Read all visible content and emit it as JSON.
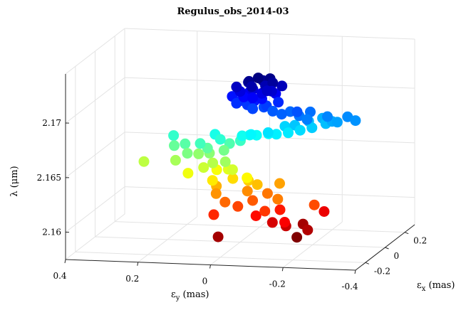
{
  "chart_data": {
    "type": "scatter",
    "projection": "3d",
    "title": "Regulus_obs_2014-03",
    "xlabel": "ε_y (mas)",
    "ylabel": "ε_x (mas)",
    "zlabel": "λ (μm)",
    "label_parts": {
      "x": {
        "base": "ε",
        "sub": "y",
        "tail": " (mas)"
      },
      "y": {
        "base": "ε",
        "sub": "x",
        "tail": " (mas)"
      },
      "z": "λ (μm)"
    },
    "x_ticks": [
      "0.4",
      "0.2",
      "0",
      "-0.2",
      "-0.4"
    ],
    "y_ticks": [
      "-0.2",
      "0",
      "0.2"
    ],
    "z_ticks": [
      "2.16",
      "2.165",
      "2.17"
    ],
    "xlim": [
      0.4,
      -0.4
    ],
    "ylim": [
      -0.3,
      0.3
    ],
    "zlim": [
      2.1575,
      2.1745
    ],
    "grid": true,
    "colormap": "jet",
    "marker": "filled-circle",
    "points": [
      {
        "x": -0.17,
        "y": -0.05,
        "z": 2.1585
      },
      {
        "x": -0.16,
        "y": 0.05,
        "z": 2.159
      },
      {
        "x": 0.02,
        "y": -0.15,
        "z": 2.159
      },
      {
        "x": -0.2,
        "y": -0.05,
        "z": 2.1592
      },
      {
        "x": -0.14,
        "y": -0.05,
        "z": 2.1595
      },
      {
        "x": -0.1,
        "y": -0.04,
        "z": 2.1597
      },
      {
        "x": -0.21,
        "y": 0.08,
        "z": 2.16
      },
      {
        "x": -0.15,
        "y": -0.1,
        "z": 2.1602
      },
      {
        "x": -0.06,
        "y": -0.06,
        "z": 2.1604
      },
      {
        "x": -0.11,
        "y": 0.0,
        "z": 2.1606
      },
      {
        "x": 0.04,
        "y": -0.12,
        "z": 2.1608
      },
      {
        "x": -0.09,
        "y": -0.08,
        "z": 2.161
      },
      {
        "x": -0.01,
        "y": -0.06,
        "z": 2.1612
      },
      {
        "x": -0.21,
        "y": -0.02,
        "z": 2.1613
      },
      {
        "x": -0.04,
        "y": -0.02,
        "z": 2.1615
      },
      {
        "x": 0.02,
        "y": -0.08,
        "z": 2.1617
      },
      {
        "x": -0.07,
        "y": 0.02,
        "z": 2.1619
      },
      {
        "x": -0.12,
        "y": -0.06,
        "z": 2.162
      },
      {
        "x": -0.02,
        "y": 0.0,
        "z": 2.1622
      },
      {
        "x": 0.05,
        "y": -0.06,
        "z": 2.1623
      },
      {
        "x": -0.09,
        "y": 0.07,
        "z": 2.1625
      },
      {
        "x": 0.06,
        "y": -0.02,
        "z": 2.1627
      },
      {
        "x": -0.05,
        "y": -0.01,
        "z": 2.1629
      },
      {
        "x": -0.02,
        "y": 0.01,
        "z": 2.1631
      },
      {
        "x": 0.02,
        "y": 0.0,
        "z": 2.1633
      },
      {
        "x": 0.06,
        "y": -0.06,
        "z": 2.1635
      },
      {
        "x": -0.03,
        "y": -0.04,
        "z": 2.1637
      },
      {
        "x": 0.07,
        "y": 0.02,
        "z": 2.1639
      },
      {
        "x": 0.13,
        "y": -0.05,
        "z": 2.164
      },
      {
        "x": 0.03,
        "y": -0.01,
        "z": 2.1642
      },
      {
        "x": 0.01,
        "y": -0.04,
        "z": 2.1644
      },
      {
        "x": 0.09,
        "y": -0.04,
        "z": 2.1645
      },
      {
        "x": 0.26,
        "y": -0.02,
        "z": 2.1647
      },
      {
        "x": 0.07,
        "y": -0.02,
        "z": 2.1648
      },
      {
        "x": 0.17,
        "y": -0.03,
        "z": 2.165
      },
      {
        "x": 0.03,
        "y": -0.04,
        "z": 2.1651
      },
      {
        "x": 0.12,
        "y": 0.02,
        "z": 2.1653
      },
      {
        "x": 0.09,
        "y": 0.02,
        "z": 2.1654
      },
      {
        "x": 0.14,
        "y": -0.02,
        "z": 2.1656
      },
      {
        "x": 0.05,
        "y": 0.02,
        "z": 2.1657
      },
      {
        "x": 0.19,
        "y": 0.03,
        "z": 2.1659
      },
      {
        "x": 0.09,
        "y": 0.0,
        "z": 2.166
      },
      {
        "x": 0.16,
        "y": 0.03,
        "z": 2.1661
      },
      {
        "x": 0.04,
        "y": 0.04,
        "z": 2.1662
      },
      {
        "x": 0.11,
        "y": 0.0,
        "z": 2.1664
      },
      {
        "x": 0.01,
        "y": 0.04,
        "z": 2.1665
      },
      {
        "x": 0.2,
        "y": 0.06,
        "z": 2.1666
      },
      {
        "x": 0.06,
        "y": 0.02,
        "z": 2.1667
      },
      {
        "x": -0.01,
        "y": 0.06,
        "z": 2.1669
      },
      {
        "x": 0.08,
        "y": 0.04,
        "z": 2.167
      },
      {
        "x": 0.0,
        "y": 0.02,
        "z": 2.1671
      },
      {
        "x": -0.04,
        "y": 0.02,
        "z": 2.1672
      },
      {
        "x": -0.07,
        "y": 0.03,
        "z": 2.1673
      },
      {
        "x": -0.03,
        "y": 0.0,
        "z": 2.1674
      },
      {
        "x": -0.1,
        "y": 0.0,
        "z": 2.1675
      },
      {
        "x": -0.13,
        "y": 0.01,
        "z": 2.1676
      },
      {
        "x": -0.08,
        "y": -0.01,
        "z": 2.1677
      },
      {
        "x": -0.16,
        "y": 0.02,
        "z": 2.1678
      },
      {
        "x": -0.11,
        "y": 0.05,
        "z": 2.1679
      },
      {
        "x": -0.19,
        "y": 0.03,
        "z": 2.168
      },
      {
        "x": -0.14,
        "y": 0.04,
        "z": 2.1681
      },
      {
        "x": -0.22,
        "y": 0.06,
        "z": 2.1682
      },
      {
        "x": -0.17,
        "y": 0.07,
        "z": 2.1683
      },
      {
        "x": -0.2,
        "y": 0.1,
        "z": 2.1684
      },
      {
        "x": -0.24,
        "y": 0.05,
        "z": 2.1685
      },
      {
        "x": -0.26,
        "y": 0.03,
        "z": 2.1686
      },
      {
        "x": -0.31,
        "y": 0.03,
        "z": 2.1688
      },
      {
        "x": -0.28,
        "y": 0.06,
        "z": 2.1689
      },
      {
        "x": -0.23,
        "y": 0.04,
        "z": 2.169
      },
      {
        "x": -0.19,
        "y": -0.02,
        "z": 2.1691
      },
      {
        "x": -0.16,
        "y": 0.01,
        "z": 2.1692
      },
      {
        "x": -0.18,
        "y": 0.05,
        "z": 2.1693
      },
      {
        "x": -0.13,
        "y": 0.03,
        "z": 2.1694
      },
      {
        "x": -0.12,
        "y": -0.02,
        "z": 2.1695
      },
      {
        "x": -0.09,
        "y": 0.0,
        "z": 2.1696
      },
      {
        "x": -0.16,
        "y": -0.01,
        "z": 2.1697
      },
      {
        "x": -0.06,
        "y": 0.02,
        "z": 2.1698
      },
      {
        "x": -0.04,
        "y": -0.02,
        "z": 2.1699
      },
      {
        "x": -0.07,
        "y": 0.01,
        "z": 2.17
      },
      {
        "x": -0.02,
        "y": 0.0,
        "z": 2.1701
      },
      {
        "x": 0.01,
        "y": 0.0,
        "z": 2.1702
      },
      {
        "x": -0.1,
        "y": 0.02,
        "z": 2.1703
      },
      {
        "x": 0.0,
        "y": 0.01,
        "z": 2.1704
      },
      {
        "x": -0.04,
        "y": 0.0,
        "z": 2.1705
      },
      {
        "x": 0.03,
        "y": 0.03,
        "z": 2.1706
      },
      {
        "x": -0.06,
        "y": 0.0,
        "z": 2.1707
      },
      {
        "x": -0.01,
        "y": 0.0,
        "z": 2.1708
      },
      {
        "x": -0.04,
        "y": -0.02,
        "z": 2.1709
      },
      {
        "x": -0.09,
        "y": 0.03,
        "z": 2.171
      },
      {
        "x": -0.02,
        "y": 0.02,
        "z": 2.1711
      },
      {
        "x": -0.06,
        "y": 0.0,
        "z": 2.1712
      },
      {
        "x": 0.0,
        "y": 0.0,
        "z": 2.1713
      },
      {
        "x": -0.03,
        "y": 0.02,
        "z": 2.1714
      },
      {
        "x": -0.09,
        "y": -0.01,
        "z": 2.1715
      },
      {
        "x": -0.08,
        "y": -0.02,
        "z": 2.1716
      },
      {
        "x": 0.01,
        "y": 0.0,
        "z": 2.1717
      },
      {
        "x": -0.11,
        "y": 0.02,
        "z": 2.1718
      },
      {
        "x": -0.07,
        "y": 0.0,
        "z": 2.1719
      },
      {
        "x": -0.04,
        "y": -0.03,
        "z": 2.172
      },
      {
        "x": -0.02,
        "y": 0.01,
        "z": 2.1721
      },
      {
        "x": -0.09,
        "y": 0.0,
        "z": 2.1722
      },
      {
        "x": -0.06,
        "y": 0.01,
        "z": 2.1723
      },
      {
        "x": -0.03,
        "y": -0.02,
        "z": 2.1724
      },
      {
        "x": -0.08,
        "y": 0.01,
        "z": 2.1725
      },
      {
        "x": -0.05,
        "y": 0.0,
        "z": 2.1726
      }
    ]
  }
}
